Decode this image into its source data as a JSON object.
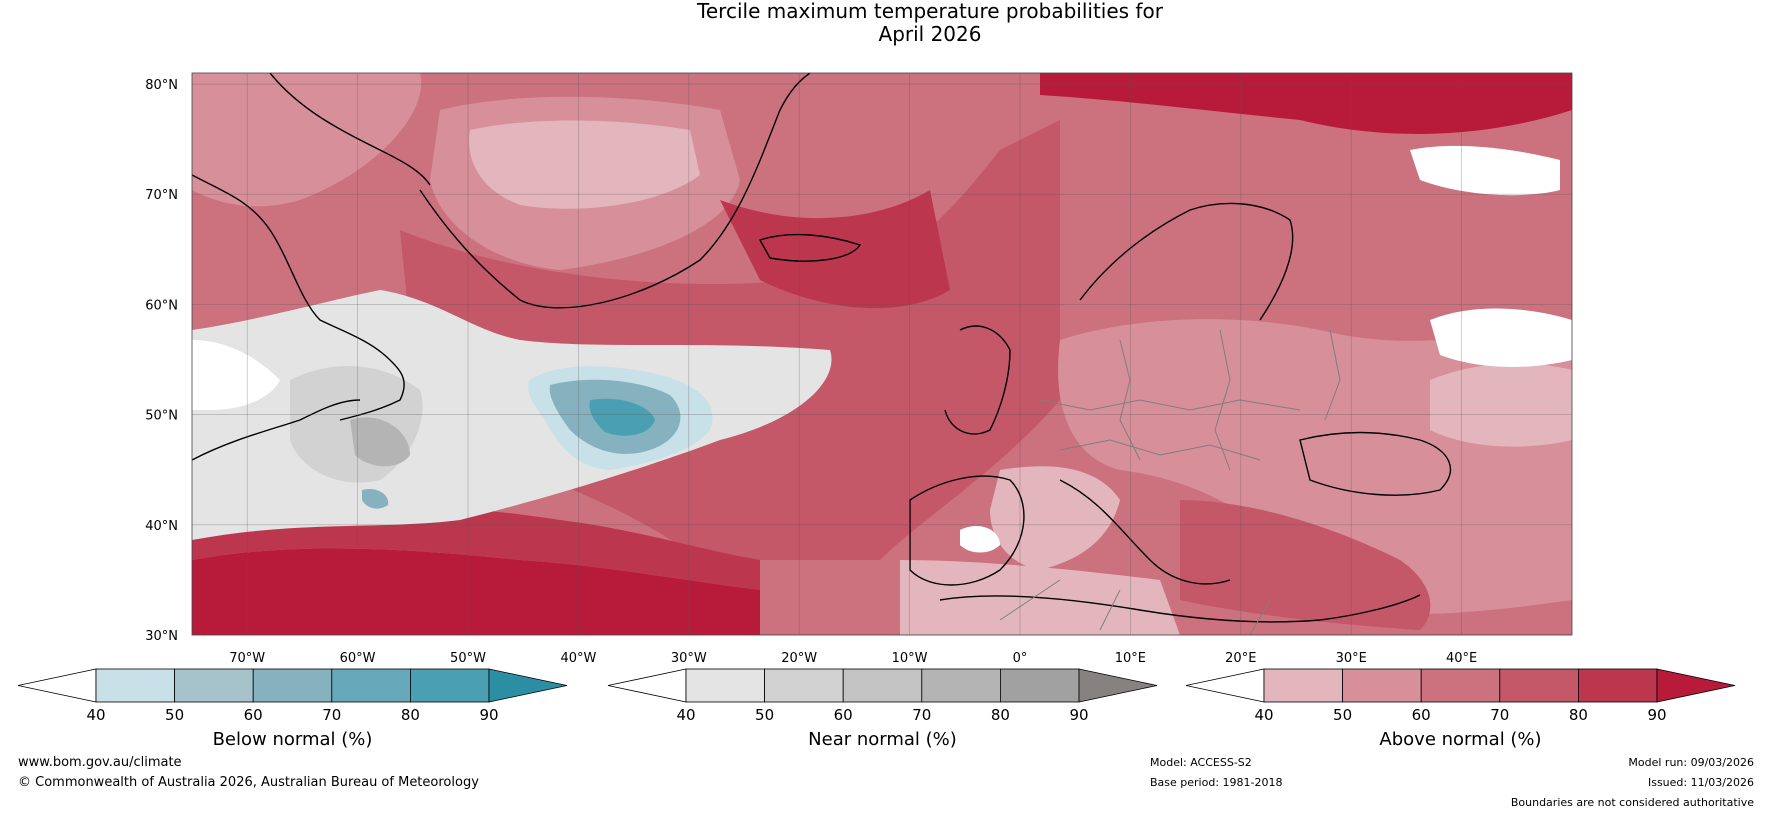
{
  "title": {
    "line1": "Tercile maximum temperature probabilities for",
    "line2": "April 2026"
  },
  "map": {
    "lat_labels": [
      "80°N",
      "70°N",
      "60°N",
      "50°N",
      "40°N",
      "30°N"
    ],
    "lon_labels": [
      "70°W",
      "60°W",
      "50°W",
      "40°W",
      "30°W",
      "20°W",
      "10°W",
      "0°",
      "10°E",
      "20°E",
      "30°E",
      "40°E"
    ],
    "lat_range": [
      30,
      81
    ],
    "lon_range": [
      -75,
      50
    ]
  },
  "colorbars": [
    {
      "title": "Below normal (%)",
      "ticks": [
        "40",
        "50",
        "60",
        "70",
        "80",
        "90"
      ],
      "colors": [
        "#ffffff",
        "#c8e0e8",
        "#a6c3cc",
        "#86b2c0",
        "#67a9ba",
        "#4aa0b2",
        "#2b8ea2"
      ]
    },
    {
      "title": "Near normal (%)",
      "ticks": [
        "40",
        "50",
        "60",
        "70",
        "80",
        "90"
      ],
      "colors": [
        "#ffffff",
        "#e4e4e4",
        "#d2d2d2",
        "#c3c3c3",
        "#b4b4b4",
        "#a1a1a1",
        "#868282"
      ]
    },
    {
      "title": "Above normal (%)",
      "ticks": [
        "40",
        "50",
        "60",
        "70",
        "80",
        "90"
      ],
      "colors": [
        "#ffffff",
        "#e3b6bd",
        "#d78f9a",
        "#cc717e",
        "#c45768",
        "#bc374e",
        "#b81b3a"
      ]
    }
  ],
  "footer": {
    "url": "www.bom.gov.au/climate",
    "copyright": "© Commonwealth of Australia 2026, Australian Bureau of Meteorology",
    "model": "Model: ACCESS-S2",
    "base_period": "Base period: 1981-2018",
    "model_run": "Model run: 09/03/2026",
    "issued": "Issued: 11/03/2026",
    "disclaimer": "Boundaries are not considered authoritative"
  }
}
